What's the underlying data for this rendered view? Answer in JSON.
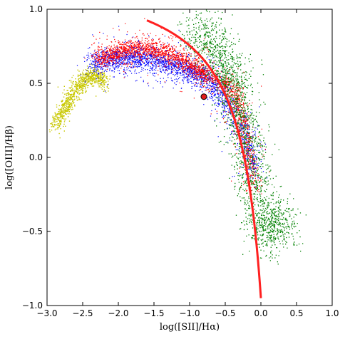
{
  "chart_data": {
    "type": "scatter",
    "xlabel": "log([SII]/Hα)",
    "ylabel": "log([OIII]/Hβ)",
    "xlim": [
      -3.0,
      1.0
    ],
    "ylim": [
      -1.0,
      1.0
    ],
    "xticks": [
      -3.0,
      -2.5,
      -2.0,
      -1.5,
      -1.0,
      -0.5,
      0.0,
      0.5,
      1.0
    ],
    "yticks": [
      -1.0,
      -0.5,
      0.0,
      0.5,
      1.0
    ],
    "xtick_labels": [
      "−3.0",
      "−2.5",
      "−2.0",
      "−1.5",
      "−1.0",
      "−0.5",
      "0.0",
      "0.5",
      "1.0"
    ],
    "ytick_labels": [
      "−1.0",
      "−0.5",
      "0.0",
      "0.5",
      "1.0"
    ],
    "grid": false,
    "series": [
      {
        "color": "#c8c800",
        "kind": "model-grid",
        "sampled_points": [
          [
            -2.9,
            0.22
          ],
          [
            -2.8,
            0.3
          ],
          [
            -2.7,
            0.38
          ],
          [
            -2.6,
            0.46
          ],
          [
            -2.5,
            0.52
          ],
          [
            -2.4,
            0.56
          ],
          [
            -2.3,
            0.55
          ],
          [
            -2.2,
            0.5
          ]
        ]
      },
      {
        "color": "#0000ff",
        "kind": "model-grid",
        "sampled_points": [
          [
            -2.4,
            0.63
          ],
          [
            -2.2,
            0.65
          ],
          [
            -2.0,
            0.67
          ],
          [
            -1.8,
            0.67
          ],
          [
            -1.6,
            0.66
          ],
          [
            -1.4,
            0.64
          ],
          [
            -1.2,
            0.62
          ],
          [
            -1.0,
            0.58
          ],
          [
            -0.8,
            0.55
          ],
          [
            -0.6,
            0.45
          ],
          [
            -0.4,
            0.3
          ],
          [
            -0.2,
            0.1
          ],
          [
            -0.1,
            -0.1
          ]
        ]
      },
      {
        "color": "#ff0000",
        "kind": "model-grid",
        "sampled_points": [
          [
            -2.3,
            0.66
          ],
          [
            -2.1,
            0.7
          ],
          [
            -1.9,
            0.73
          ],
          [
            -1.7,
            0.74
          ],
          [
            -1.5,
            0.73
          ],
          [
            -1.3,
            0.71
          ],
          [
            -1.1,
            0.66
          ],
          [
            -0.9,
            0.6
          ],
          [
            -0.8,
            0.56
          ],
          [
            -0.5,
            0.5
          ],
          [
            -0.3,
            0.35
          ],
          [
            -0.2,
            0.1
          ],
          [
            -0.1,
            -0.2
          ]
        ]
      },
      {
        "color": "#008000",
        "kind": "model-grid",
        "sampled_points": [
          [
            -0.9,
            0.85
          ],
          [
            -0.7,
            0.78
          ],
          [
            -0.5,
            0.65
          ],
          [
            -0.4,
            0.5
          ],
          [
            -0.3,
            0.3
          ],
          [
            -0.2,
            0.1
          ],
          [
            -0.1,
            -0.15
          ],
          [
            0.0,
            -0.45
          ],
          [
            0.2,
            -0.5
          ],
          [
            0.3,
            -0.4
          ]
        ]
      },
      {
        "color": "#ff0000",
        "kind": "demarcation-curve",
        "formula": "y = 0.72/(x - 0.32) + 1.30"
      },
      {
        "color": "#ff0000",
        "kind": "single-point",
        "points": [
          [
            -0.8,
            0.41
          ]
        ]
      }
    ]
  }
}
